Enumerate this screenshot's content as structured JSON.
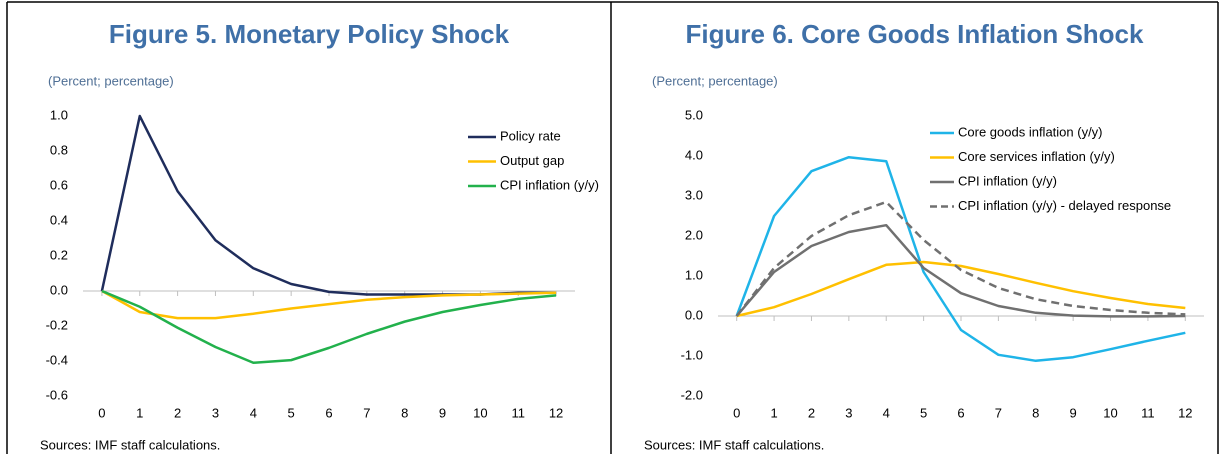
{
  "chart_data": [
    {
      "type": "line",
      "title": "Figure 5. Monetary Policy Shock",
      "subtitle": "(Percent; percentage)",
      "note": "Sources: IMF staff calculations.",
      "x": [
        0,
        1,
        2,
        3,
        4,
        5,
        6,
        7,
        8,
        9,
        10,
        11,
        12
      ],
      "xlim": [
        -0.5,
        12.5
      ],
      "xticks": [
        0,
        1,
        2,
        3,
        4,
        5,
        6,
        7,
        8,
        9,
        10,
        11,
        12
      ],
      "ylim": [
        -0.6,
        1.0
      ],
      "yticks": [
        {
          "value": -0.6,
          "label": "-0.6"
        },
        {
          "value": -0.4,
          "label": "-0.4"
        },
        {
          "value": -0.2,
          "label": "-0.2"
        },
        {
          "value": 0,
          "label": "0.0"
        },
        {
          "value": 0.2,
          "label": "0.2"
        },
        {
          "value": 0.4,
          "label": "0.4"
        },
        {
          "value": 0.6,
          "label": "0.6"
        },
        {
          "value": 0.8,
          "label": "0.8"
        },
        {
          "value": 1.0,
          "label": "1.0"
        }
      ],
      "legend": "upper right",
      "grid": false,
      "series": [
        {
          "name": "Policy rate",
          "color": "#1f2d5c",
          "values": [
            0,
            1.0,
            0.57,
            0.29,
            0.13,
            0.04,
            -0.005,
            -0.02,
            -0.02,
            -0.02,
            -0.02,
            -0.01,
            -0.01
          ]
        },
        {
          "name": "Output gap",
          "color": "#ffc000",
          "values": [
            0,
            -0.12,
            -0.155,
            -0.155,
            -0.13,
            -0.1,
            -0.075,
            -0.05,
            -0.035,
            -0.025,
            -0.02,
            -0.015,
            -0.01
          ]
        },
        {
          "name": "CPI inflation (y/y)",
          "color": "#22b14c",
          "values": [
            0,
            -0.09,
            -0.21,
            -0.32,
            -0.41,
            -0.395,
            -0.325,
            -0.245,
            -0.175,
            -0.12,
            -0.08,
            -0.045,
            -0.025
          ]
        }
      ]
    },
    {
      "type": "line",
      "title": "Figure 6. Core Goods Inflation Shock",
      "subtitle": "(Percent; percentage)",
      "note": "Sources: IMF staff calculations.",
      "x": [
        0,
        1,
        2,
        3,
        4,
        5,
        6,
        7,
        8,
        9,
        10,
        11,
        12
      ],
      "xlim": [
        -0.5,
        12.5
      ],
      "xticks": [
        0,
        1,
        2,
        3,
        4,
        5,
        6,
        7,
        8,
        9,
        10,
        11,
        12
      ],
      "ylim": [
        -2.0,
        5.0
      ],
      "yticks": [
        {
          "value": -2,
          "label": "-2.0"
        },
        {
          "value": -1,
          "label": "-1.0"
        },
        {
          "value": 0,
          "label": "0.0"
        },
        {
          "value": 1,
          "label": "1.0"
        },
        {
          "value": 2,
          "label": "2.0"
        },
        {
          "value": 3,
          "label": "3.0"
        },
        {
          "value": 4,
          "label": "4.0"
        },
        {
          "value": 5,
          "label": "5.0"
        }
      ],
      "legend": "upper right",
      "grid": false,
      "series": [
        {
          "name": "Core goods inflation (y/y)",
          "color": "#1fb4e8",
          "values": [
            0,
            2.5,
            3.62,
            3.97,
            3.87,
            1.1,
            -0.35,
            -0.97,
            -1.12,
            -1.03,
            -0.83,
            -0.62,
            -0.42
          ]
        },
        {
          "name": "Core services inflation (y/y)",
          "color": "#ffc000",
          "values": [
            0,
            0.22,
            0.55,
            0.92,
            1.28,
            1.35,
            1.25,
            1.05,
            0.83,
            0.62,
            0.45,
            0.3,
            0.2
          ]
        },
        {
          "name": "CPI inflation (y/y)",
          "color": "#707070",
          "values": [
            0,
            1.1,
            1.75,
            2.1,
            2.27,
            1.2,
            0.57,
            0.25,
            0.08,
            0.01,
            -0.01,
            -0.01,
            0
          ]
        },
        {
          "name": "CPI inflation (y/y) - delayed response",
          "color": "#707070",
          "dash": true,
          "values": [
            0,
            1.2,
            2.0,
            2.52,
            2.85,
            1.9,
            1.15,
            0.7,
            0.42,
            0.25,
            0.15,
            0.08,
            0.04
          ]
        }
      ]
    }
  ]
}
